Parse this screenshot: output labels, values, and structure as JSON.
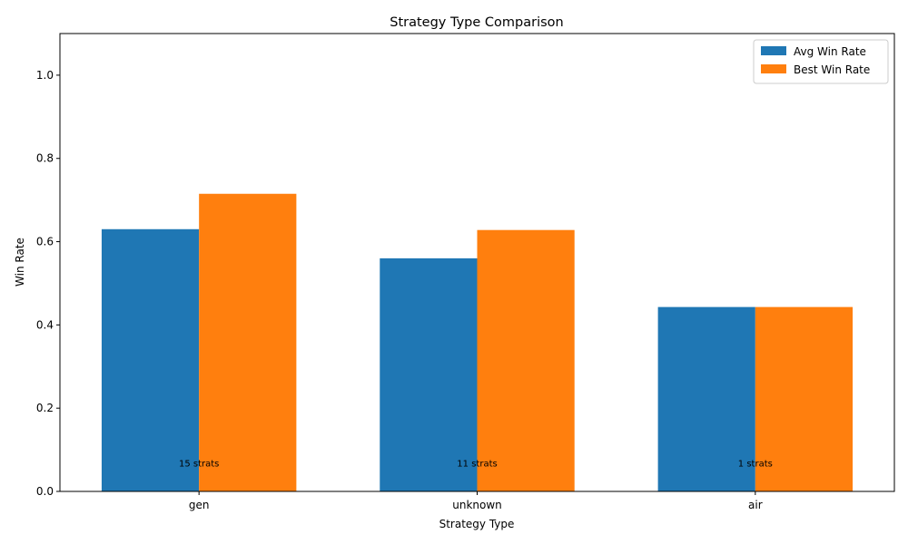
{
  "chart_data": {
    "type": "bar",
    "title": "Strategy Type Comparison",
    "xlabel": "Strategy Type",
    "ylabel": "Win Rate",
    "categories": [
      "gen",
      "unknown",
      "air"
    ],
    "series": [
      {
        "name": "Avg Win Rate",
        "values": [
          0.63,
          0.56,
          0.443
        ],
        "color": "#1f77b4"
      },
      {
        "name": "Best Win Rate",
        "values": [
          0.715,
          0.628,
          0.443
        ],
        "color": "#ff7f0e"
      }
    ],
    "annotations": [
      "15 strats",
      "11 strats",
      "1 strats"
    ],
    "ylim": [
      0,
      1.1
    ],
    "yticks": [
      0.0,
      0.2,
      0.4,
      0.6,
      0.8,
      1.0
    ],
    "ytick_labels": [
      "0.0",
      "0.2",
      "0.4",
      "0.6",
      "0.8",
      "1.0"
    ],
    "grid": false,
    "legend_position": "top-right"
  }
}
